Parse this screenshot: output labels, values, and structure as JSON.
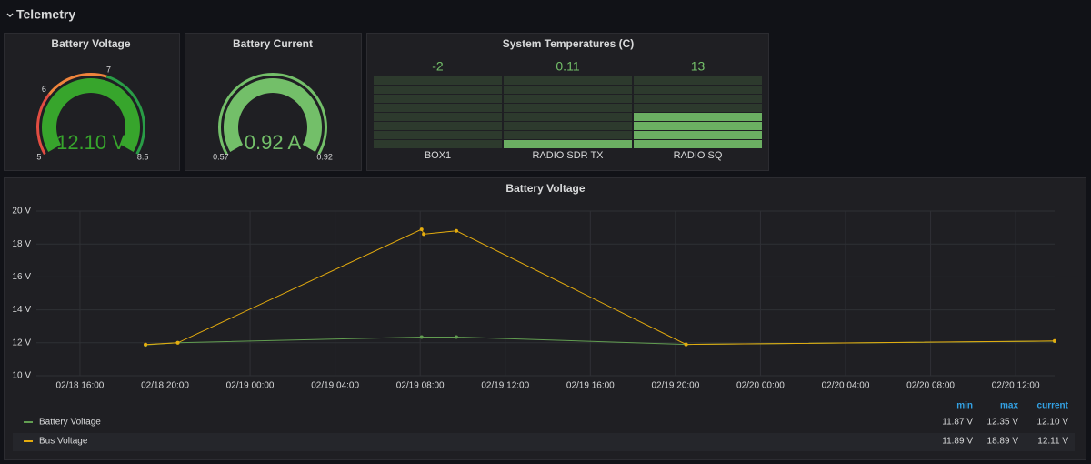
{
  "row": {
    "title": "Telemetry"
  },
  "gauges": [
    {
      "type": "gauge",
      "title": "Battery Voltage",
      "value": 12.1,
      "value_label": "12.10 V",
      "lim": [
        5,
        8.5
      ],
      "ticks": [
        5,
        6,
        7,
        8.5
      ],
      "color": "#37a52c",
      "thresholds": [
        {
          "value": 5,
          "color": "#e24d42"
        },
        {
          "value": 6,
          "color": "#ef843c"
        },
        {
          "value": 7,
          "color": "#299c46"
        }
      ]
    },
    {
      "type": "gauge",
      "title": "Battery Current",
      "value": 0.92,
      "value_label": "0.92 A",
      "lim": [
        0.57,
        0.92
      ],
      "ticks": [
        0.57,
        0.92
      ],
      "color": "#73bf69",
      "thresholds": [
        {
          "value": 0.57,
          "color": "#73bf69"
        }
      ]
    }
  ],
  "bar_gauge": {
    "type": "bar_gauge",
    "title": "System Temperatures (C)",
    "categories": [
      "BOX1",
      "RADIO SDR TX",
      "RADIO SQ"
    ],
    "values": [
      -2,
      0.11,
      13
    ],
    "lim": [
      -5,
      27
    ],
    "color": "#73bf69"
  },
  "chart": {
    "type": "line",
    "title": "Battery Voltage",
    "xlim": [
      "02/18 13:57",
      "02/20 13:50"
    ],
    "xticks": [
      "02/18 16:00",
      "02/18 20:00",
      "02/19 00:00",
      "02/19 04:00",
      "02/19 08:00",
      "02/19 12:00",
      "02/19 16:00",
      "02/19 20:00",
      "02/20 00:00",
      "02/20 04:00",
      "02/20 08:00",
      "02/20 12:00"
    ],
    "ylim": [
      10,
      20
    ],
    "yticks": [
      {
        "value": 10,
        "label": "10 V"
      },
      {
        "value": 12,
        "label": "12 V"
      },
      {
        "value": 14,
        "label": "14 V"
      },
      {
        "value": 16,
        "label": "16 V"
      },
      {
        "value": 18,
        "label": "18 V"
      },
      {
        "value": 20,
        "label": "20 V"
      }
    ],
    "grid": true,
    "series": [
      {
        "name": "Battery Voltage",
        "color": "#629e51",
        "x": [
          "02/18 19:05",
          "02/18 20:36",
          "02/19 08:04",
          "02/19 09:42",
          "02/19 20:30",
          "02/20 13:50"
        ],
        "values": [
          11.87,
          12.0,
          12.35,
          12.35,
          11.9,
          12.1
        ]
      },
      {
        "name": "Bus Voltage",
        "color": "#e5ac0e",
        "x": [
          "02/18 19:05",
          "02/18 20:36",
          "02/19 08:04",
          "02/19 08:10",
          "02/19 09:42",
          "02/19 20:30",
          "02/20 13:50"
        ],
        "values": [
          11.89,
          12.0,
          18.89,
          18.6,
          18.8,
          11.9,
          12.11
        ]
      }
    ],
    "legend": {
      "columns": [
        "min",
        "max",
        "current"
      ],
      "rows": [
        [
          "11.87 V",
          "12.35 V",
          "12.10 V"
        ],
        [
          "11.89 V",
          "18.89 V",
          "12.11 V"
        ]
      ]
    }
  }
}
